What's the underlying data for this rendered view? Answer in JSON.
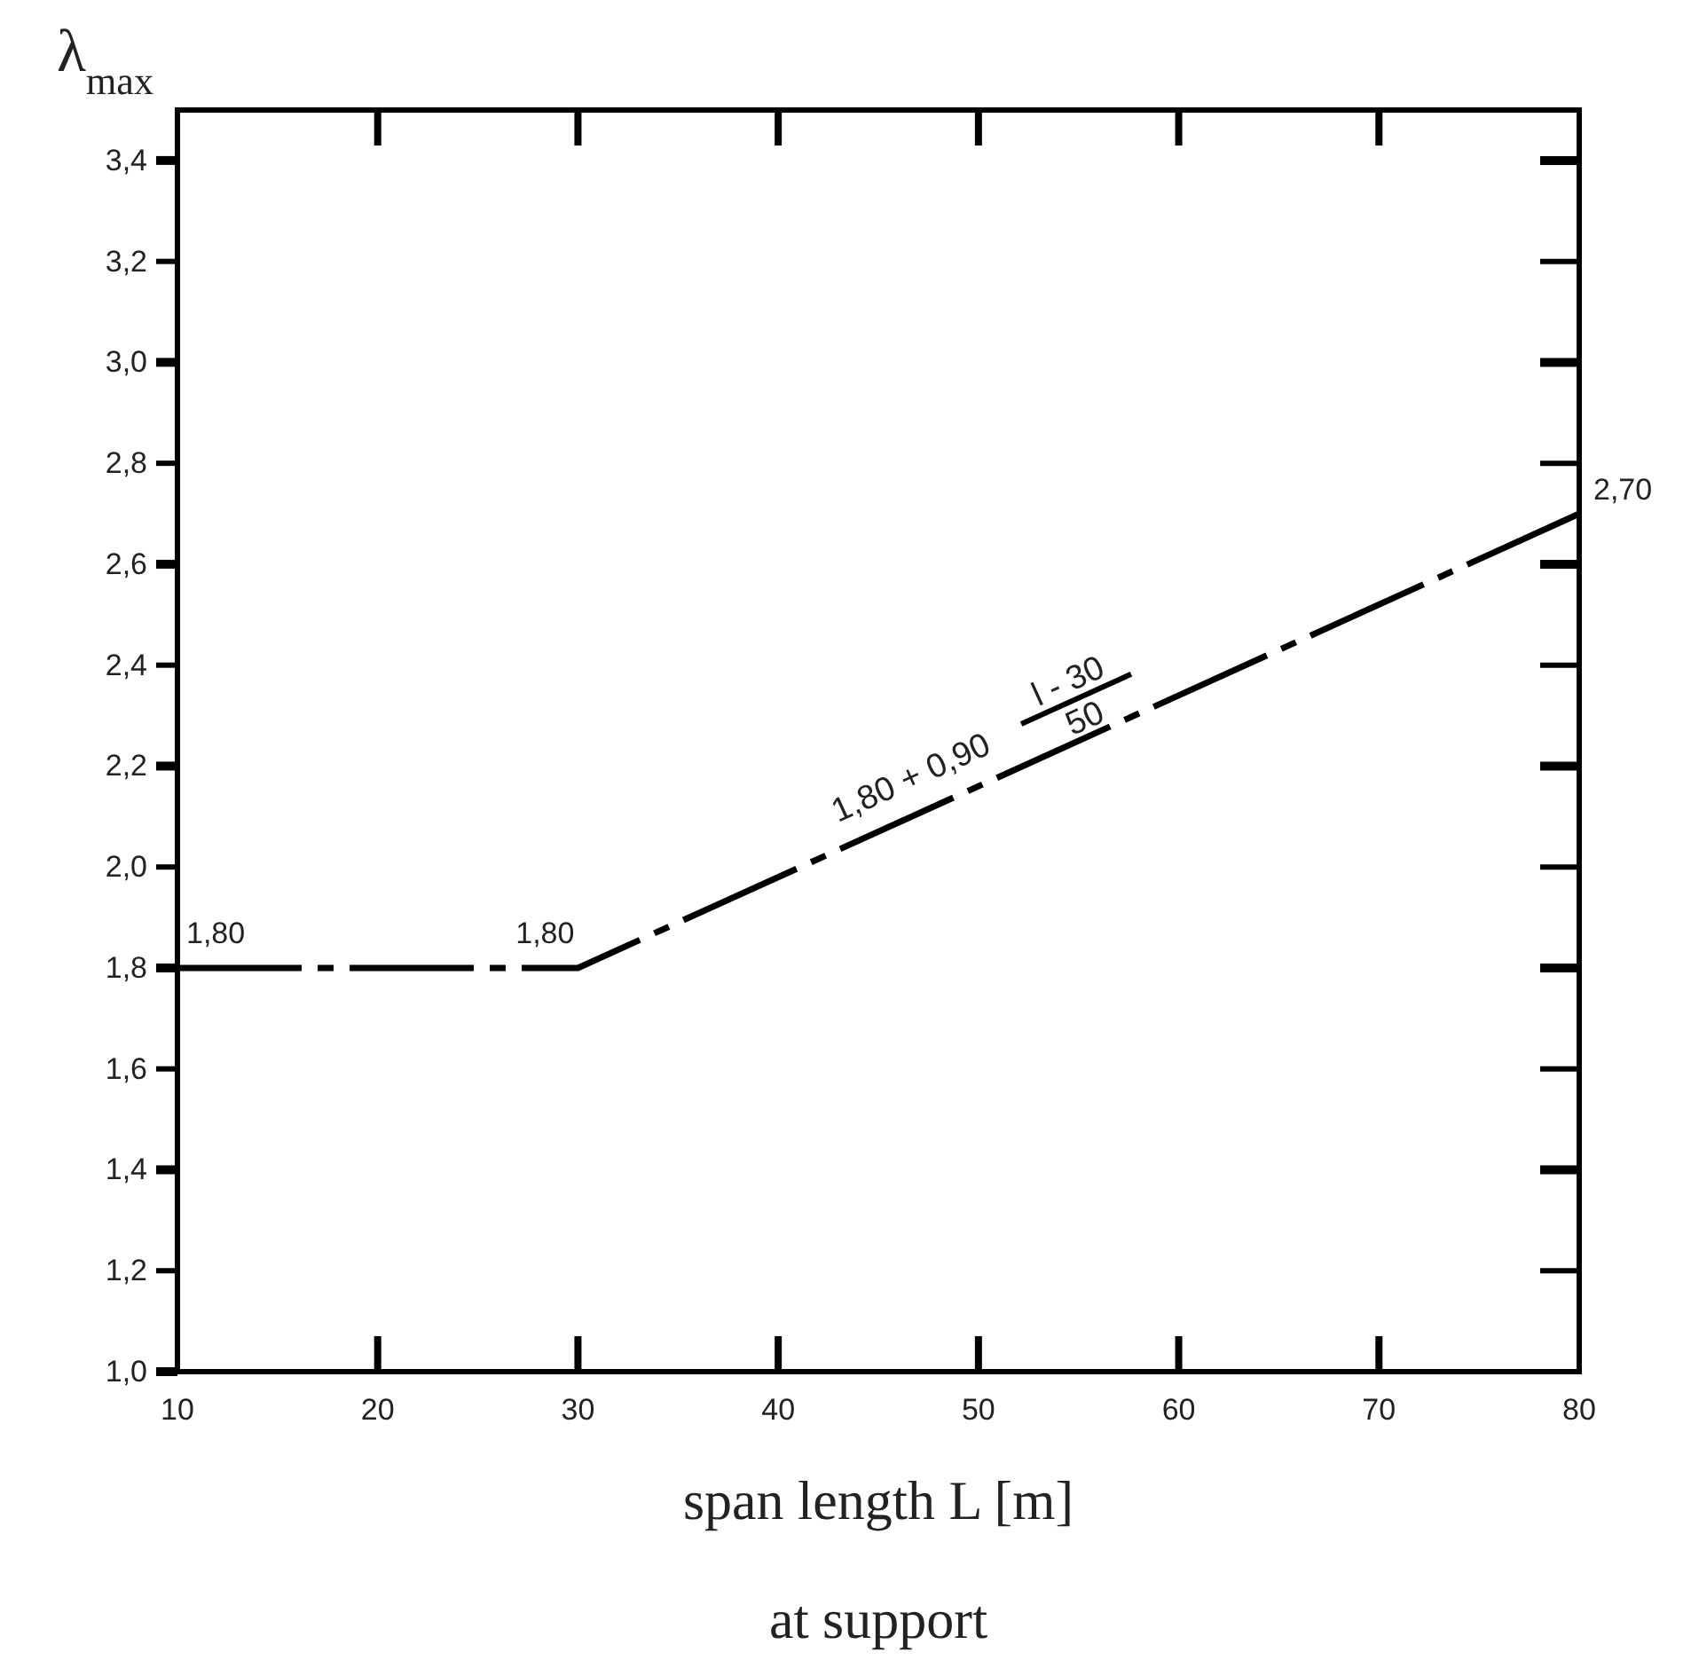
{
  "chart_data": {
    "type": "line",
    "ylabel": "λ$_{max}$",
    "xlabel": "span length L [m]",
    "x": [
      10,
      30,
      80
    ],
    "series": [
      {
        "color": "#000000",
        "values": [
          1.8,
          1.8,
          2.7
        ]
      }
    ],
    "line_style": "dashed",
    "marker": "none",
    "xlim": [
      10,
      80
    ],
    "xticks": [
      10,
      20,
      30,
      40,
      50,
      60,
      70,
      80
    ],
    "ylim": [
      1.0,
      3.5
    ],
    "yticks": [
      {
        "value": 1.0,
        "label": "1,0"
      },
      {
        "value": 1.2,
        "label": "1,2"
      },
      {
        "value": 1.4,
        "label": "1,4"
      },
      {
        "value": 1.6,
        "label": "1,6"
      },
      {
        "value": 1.8,
        "label": "1,8"
      },
      {
        "value": 2.0,
        "label": "2,0"
      },
      {
        "value": 2.2,
        "label": "2,2"
      },
      {
        "value": 2.4,
        "label": "2,4"
      },
      {
        "value": 2.6,
        "label": "2,6"
      },
      {
        "value": 2.8,
        "label": "2,8"
      },
      {
        "value": 3.0,
        "label": "3,0"
      },
      {
        "value": 3.2,
        "label": "3,2"
      },
      {
        "value": 3.4,
        "label": "3,4"
      }
    ],
    "annotations": [
      {
        "text": "1,80",
        "x": 10,
        "y": 1.8
      },
      {
        "text": "1,80",
        "x": 30,
        "y": 1.8
      },
      {
        "text": "2,70",
        "x": 80,
        "y": 2.7
      },
      "1,80 + 0,90",
      "l - 30",
      "50",
      "at support"
    ]
  }
}
